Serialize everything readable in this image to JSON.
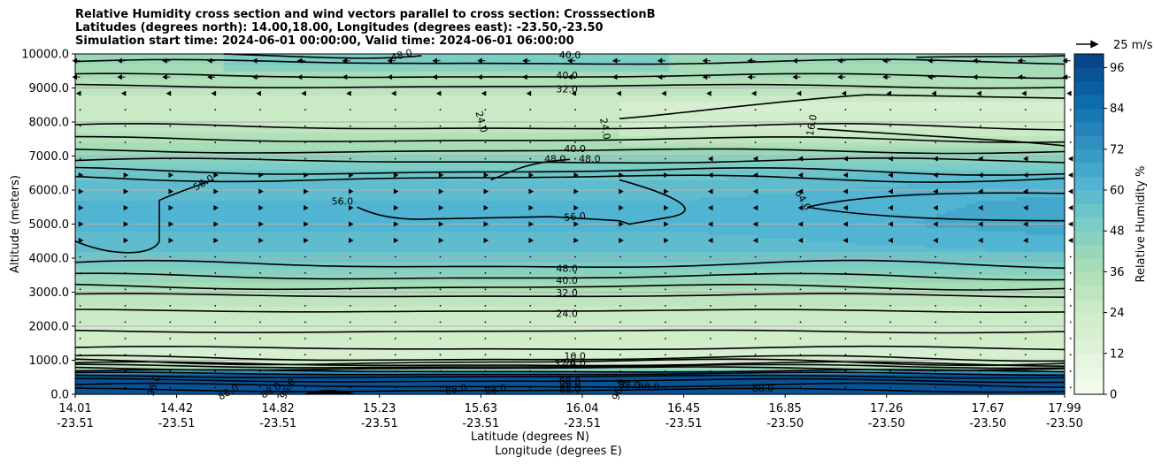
{
  "chart_data": {
    "type": "heatmap",
    "title_lines": [
      "Relative Humidity cross section and wind vectors parallel to cross section: CrosssectionB",
      "Latitudes (degrees north): 14.00,18.00, Longitudes (degrees east): -23.50,-23.50",
      "Simulation start time: 2024-06-01 00:00:00, Valid time: 2024-06-01 06:00:00"
    ],
    "xlabel_lat": "Latitude (degrees N)",
    "xlabel_lon": "Longitude (degrees E)",
    "ylabel": "Altitude (meters)",
    "x_ticks": [
      {
        "lat": "14.01",
        "lon": "-23.51"
      },
      {
        "lat": "14.42",
        "lon": "-23.51"
      },
      {
        "lat": "14.82",
        "lon": "-23.51"
      },
      {
        "lat": "15.23",
        "lon": "-23.51"
      },
      {
        "lat": "15.63",
        "lon": "-23.51"
      },
      {
        "lat": "16.04",
        "lon": "-23.51"
      },
      {
        "lat": "16.45",
        "lon": "-23.51"
      },
      {
        "lat": "16.85",
        "lon": "-23.50"
      },
      {
        "lat": "17.26",
        "lon": "-23.50"
      },
      {
        "lat": "17.67",
        "lon": "-23.50"
      },
      {
        "lat": "17.99",
        "lon": "-23.50"
      }
    ],
    "y_ticks": [
      "0.0",
      "1000.0",
      "2000.0",
      "3000.0",
      "4000.0",
      "5000.0",
      "6000.0",
      "7000.0",
      "8000.0",
      "9000.0",
      "10000.0"
    ],
    "ylim": [
      0,
      10000
    ],
    "grid": "horizontal",
    "colorbar": {
      "label": "Relative Humidity %",
      "ticks": [
        "0",
        "12",
        "24",
        "36",
        "48",
        "60",
        "72",
        "84",
        "96"
      ],
      "range": [
        0,
        100
      ],
      "colormap": "GnBu",
      "low_color": "#f7fcf0",
      "high_color": "#084081"
    },
    "quiver_key": "25 m/s",
    "contour_labels": [
      {
        "text": "48.0",
        "x": 0.33,
        "alt": 9950,
        "rot": -15
      },
      {
        "text": "40.0",
        "x": 0.5,
        "alt": 9950,
        "rot": 0
      },
      {
        "text": "40.0",
        "x": 0.497,
        "alt": 9350,
        "rot": 0
      },
      {
        "text": "32.0",
        "x": 0.497,
        "alt": 8950,
        "rot": 0
      },
      {
        "text": "24.0",
        "x": 0.41,
        "alt": 8000,
        "rot": 75
      },
      {
        "text": "24.0",
        "x": 0.535,
        "alt": 7800,
        "rot": 80
      },
      {
        "text": "16.0",
        "x": 0.745,
        "alt": 7900,
        "rot": -80
      },
      {
        "text": "40.0",
        "x": 0.505,
        "alt": 7200,
        "rot": 0
      },
      {
        "text": "48.0",
        "x": 0.485,
        "alt": 6900,
        "rot": 0
      },
      {
        "text": "48.0",
        "x": 0.52,
        "alt": 6900,
        "rot": 0
      },
      {
        "text": "56.0",
        "x": 0.13,
        "alt": 6200,
        "rot": -30
      },
      {
        "text": "56.0",
        "x": 0.27,
        "alt": 5650,
        "rot": 0
      },
      {
        "text": "56.0",
        "x": 0.505,
        "alt": 5200,
        "rot": -5
      },
      {
        "text": "64.0",
        "x": 0.735,
        "alt": 5700,
        "rot": 60
      },
      {
        "text": "48.0",
        "x": 0.497,
        "alt": 3680,
        "rot": 0
      },
      {
        "text": "40.0",
        "x": 0.497,
        "alt": 3330,
        "rot": 0
      },
      {
        "text": "32.0",
        "x": 0.497,
        "alt": 2960,
        "rot": 0
      },
      {
        "text": "24.0",
        "x": 0.497,
        "alt": 2350,
        "rot": 0
      },
      {
        "text": "16.0",
        "x": 0.505,
        "alt": 1100,
        "rot": 0
      },
      {
        "text": "24.0",
        "x": 0.505,
        "alt": 900,
        "rot": 0
      },
      {
        "text": "32.0",
        "x": 0.495,
        "alt": 880,
        "rot": 0
      },
      {
        "text": "88.0",
        "x": 0.5,
        "alt": 360,
        "rot": 0
      },
      {
        "text": "96.0",
        "x": 0.5,
        "alt": 290,
        "rot": 0
      },
      {
        "text": "88.0",
        "x": 0.5,
        "alt": 130,
        "rot": 0
      },
      {
        "text": "88.0",
        "x": 0.385,
        "alt": 130,
        "rot": -10
      },
      {
        "text": "88.0",
        "x": 0.425,
        "alt": 130,
        "rot": -10
      },
      {
        "text": "88.0",
        "x": 0.155,
        "alt": 50,
        "rot": -30
      },
      {
        "text": "88.0",
        "x": 0.198,
        "alt": 100,
        "rot": -30
      },
      {
        "text": "96.0",
        "x": 0.215,
        "alt": 150,
        "rot": -60
      },
      {
        "text": "96.0",
        "x": 0.08,
        "alt": 250,
        "rot": -70
      },
      {
        "text": "96.0",
        "x": 0.55,
        "alt": 130,
        "rot": -70
      },
      {
        "text": "88.0",
        "x": 0.56,
        "alt": 250,
        "rot": 0
      },
      {
        "text": "88.0",
        "x": 0.58,
        "alt": 200,
        "rot": 0
      },
      {
        "text": "88.0",
        "x": 0.695,
        "alt": 150,
        "rot": 0
      }
    ]
  }
}
